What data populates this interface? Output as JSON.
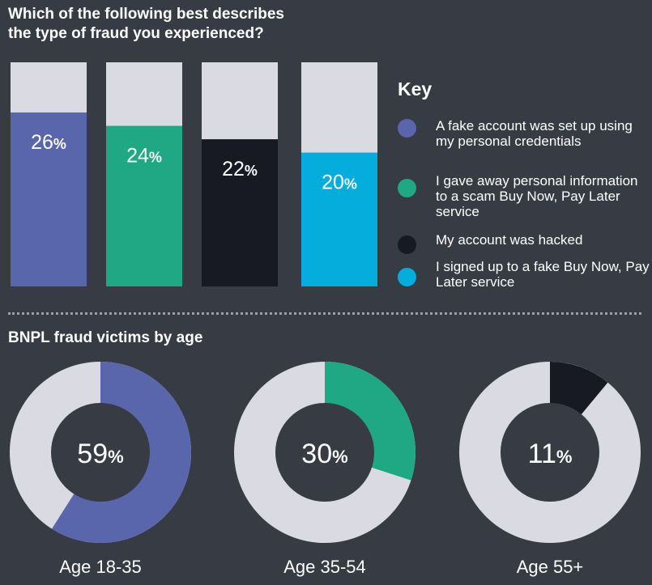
{
  "bar_section": {
    "title_line1": "Which of the following best describes",
    "title_line2": "the type of fraud you experienced?"
  },
  "key": {
    "title": "Key",
    "items": [
      {
        "label": "A fake account was set up using my personal credentials",
        "color": "#5a66ab"
      },
      {
        "label": "I gave away personal information to a scam Buy Now, Pay Later service",
        "color": "#1fa883"
      },
      {
        "label": "My account was hacked",
        "color": "#171a22"
      },
      {
        "label": "I signed up to a fake Buy Now, Pay Later service",
        "color": "#05addc"
      }
    ]
  },
  "age_section": {
    "title": "BNPL fraud victims by age"
  },
  "colors": {
    "background": "#373b44",
    "track": "#d9dae2",
    "dotted": "#9aa0ad"
  },
  "chart_data": [
    {
      "type": "bar",
      "title": "Which of the following best describes the type of fraud you experienced?",
      "categories": [
        "A fake account was set up using my personal credentials",
        "I gave away personal information to a scam Buy Now, Pay Later service",
        "My account was hacked",
        "I signed up to a fake Buy Now, Pay Later service"
      ],
      "values": [
        26,
        24,
        22,
        20
      ],
      "value_labels": [
        "26%",
        "24%",
        "22%",
        "20%"
      ],
      "colors": [
        "#5a66ab",
        "#1fa883",
        "#171a22",
        "#05addc"
      ],
      "ylim": [
        0,
        33.5
      ]
    },
    {
      "type": "pie",
      "title": "BNPL fraud victims by age",
      "series": [
        {
          "name": "Age 18-35",
          "value": 59,
          "label": "59%",
          "color": "#5a66ab"
        },
        {
          "name": "Age 35-54",
          "value": 30,
          "label": "30%",
          "color": "#1fa883"
        },
        {
          "name": "Age 55+",
          "value": 11,
          "label": "11%",
          "color": "#171a22"
        }
      ]
    }
  ]
}
